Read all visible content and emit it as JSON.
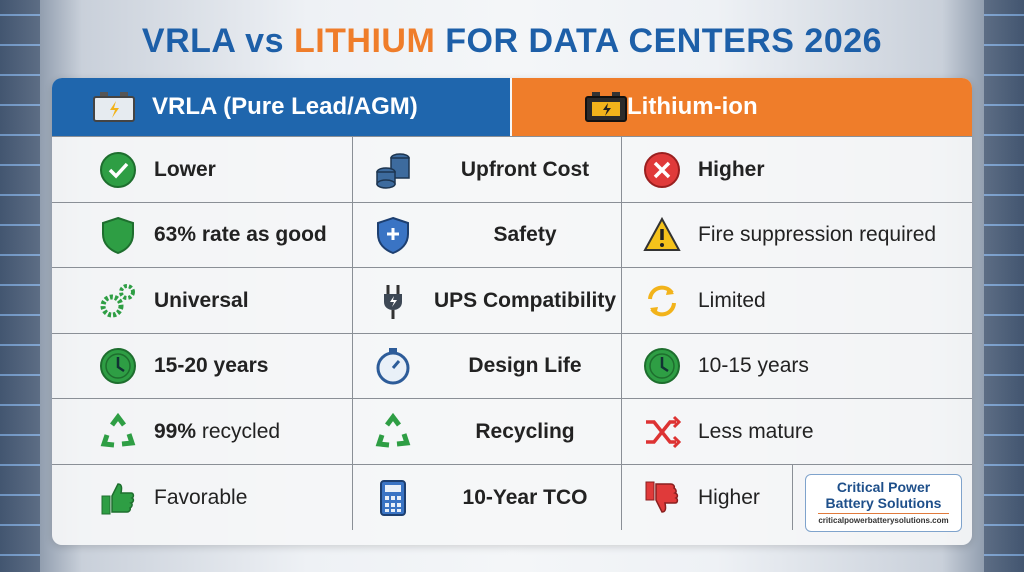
{
  "title": {
    "part1": "VRLA",
    "part2": " vs ",
    "part3": "LITHIUM",
    "part4": " FOR DATA CENTERS 2026"
  },
  "colors": {
    "blue": "#1f66ad",
    "orange": "#ef7d2a",
    "green": "#2e9e44",
    "red": "#e03a3a"
  },
  "headers": {
    "vrla": "VRLA (Pure Lead/AGM)",
    "lithium": "Lithium-ion"
  },
  "rows": [
    {
      "vrla": "Lower",
      "vrla_icon": "check-circle-icon",
      "criterion": "Upfront Cost",
      "criterion_icon": "coins-icon",
      "lithium": "Higher",
      "lithium_icon": "x-circle-icon"
    },
    {
      "vrla": "63% rate as good",
      "vrla_icon": "shield-icon",
      "criterion": "Safety",
      "criterion_icon": "shield-plus-icon",
      "lithium": "Fire suppression required",
      "lithium_icon": "warning-icon"
    },
    {
      "vrla": "Universal",
      "vrla_icon": "gears-icon",
      "criterion": "UPS Compatibility",
      "criterion_icon": "plug-icon",
      "lithium": "Limited",
      "lithium_icon": "refresh-icon"
    },
    {
      "vrla": "15-20 years",
      "vrla_icon": "clock-icon",
      "criterion": "Design Life",
      "criterion_icon": "stopwatch-icon",
      "lithium": "10-15 years",
      "lithium_icon": "clock-icon"
    },
    {
      "vrla_bold": "99%",
      "vrla": " recycled",
      "vrla_icon": "recycle-icon",
      "criterion": "Recycling",
      "criterion_icon": "recycle-icon",
      "lithium": "Less mature",
      "lithium_icon": "shuffle-icon"
    },
    {
      "vrla": "Favorable",
      "vrla_icon": "thumbs-up-icon",
      "criterion": "10-Year TCO",
      "criterion_icon": "calculator-icon",
      "lithium": "Higher",
      "lithium_icon": "thumbs-down-icon"
    }
  ],
  "logo": {
    "line1": "Critical Power",
    "line2": "Battery Solutions",
    "url": "criticalpowerbatterysolutions.com"
  }
}
